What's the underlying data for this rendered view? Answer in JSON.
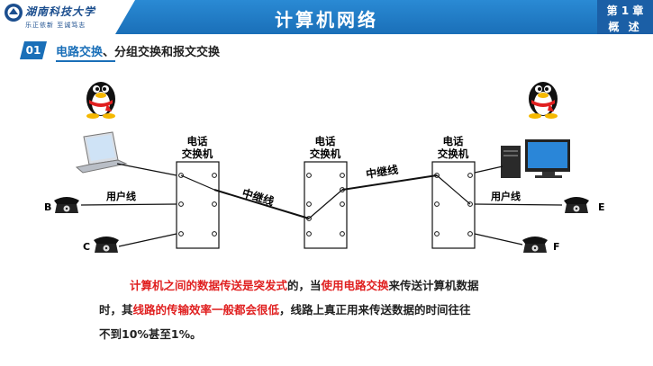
{
  "header": {
    "title": "计算机网络",
    "logo_name": "湖南科技大学",
    "logo_motto": "乐正依新 至诚笃志",
    "chapter_line1": "第 1 章",
    "chapter_line2": "概 述"
  },
  "section": {
    "number": "01",
    "title_highlight": "电路交换",
    "title_rest": "、分组交换和报文交换"
  },
  "diagram": {
    "switch_label_line1": "电话",
    "switch_label_line2": "交换机",
    "trunk_label": "中继线",
    "user_line_label": "用户线",
    "phone_labels": [
      "B",
      "C",
      "E",
      "F"
    ]
  },
  "paragraph": {
    "seg1": "计算机之间的数据传送是突发式",
    "seg2": "的，当",
    "seg3": "使用电路交换",
    "seg4": "来传送计算机数据",
    "seg5": "时，其",
    "seg6": "线路的传输效率一般都会很低",
    "seg7": "，线路上真正用来传送数据的时间往往",
    "seg8": "不到10%甚至1%。"
  },
  "colors": {
    "brand_blue": "#1a6fb8",
    "emphasis_red": "#e02020"
  }
}
